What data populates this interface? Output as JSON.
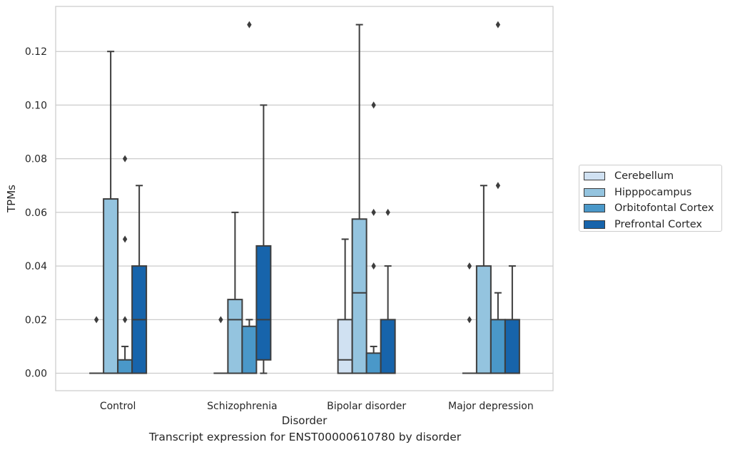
{
  "chart_data": {
    "type": "box",
    "caption": "Transcript expression for ENST00000610780 by disorder",
    "xlabel": "Disorder",
    "ylabel": "TPMs",
    "ylim": [
      -0.0065,
      0.1368
    ],
    "yticks": [
      "0.00",
      "0.02",
      "0.04",
      "0.06",
      "0.08",
      "0.10",
      "0.12"
    ],
    "ytick_values": [
      0,
      0.02,
      0.04,
      0.06,
      0.08,
      0.1,
      0.12
    ],
    "grid": "horizontal",
    "legend_position": "right",
    "categories": [
      "Control",
      "Schizophrenia",
      "Bipolar disorder",
      "Major depression"
    ],
    "series": [
      {
        "name": "Cerebellum",
        "color": "#d0e1f2",
        "boxes": [
          {
            "q1": 0,
            "median": 0,
            "q3": 0,
            "whislo": 0,
            "whishi": 0,
            "fliers": [
              0.02
            ]
          },
          {
            "q1": 0,
            "median": 0,
            "q3": 0,
            "whislo": 0,
            "whishi": 0,
            "fliers": [
              0.02
            ]
          },
          {
            "q1": 0,
            "median": 0.005,
            "q3": 0.02,
            "whislo": 0,
            "whishi": 0.05,
            "fliers": []
          },
          {
            "q1": 0,
            "median": 0,
            "q3": 0,
            "whislo": 0,
            "whishi": 0,
            "fliers": [
              0.02,
              0.04
            ]
          }
        ]
      },
      {
        "name": "Hipppocampus",
        "color": "#94c4df",
        "boxes": [
          {
            "q1": 0,
            "median": 0,
            "q3": 0.065,
            "whislo": 0,
            "whishi": 0.12,
            "fliers": []
          },
          {
            "q1": 0,
            "median": 0.02,
            "q3": 0.0275,
            "whislo": 0,
            "whishi": 0.06,
            "fliers": []
          },
          {
            "q1": 0,
            "median": 0.03,
            "q3": 0.0575,
            "whislo": 0,
            "whishi": 0.13,
            "fliers": []
          },
          {
            "q1": 0,
            "median": 0,
            "q3": 0.04,
            "whislo": 0,
            "whishi": 0.07,
            "fliers": []
          }
        ]
      },
      {
        "name": "Orbitofontal Cortex",
        "color": "#4a98c9",
        "boxes": [
          {
            "q1": 0,
            "median": 0,
            "q3": 0.005,
            "whislo": 0,
            "whishi": 0.01,
            "fliers": [
              0.02,
              0.05,
              0.08
            ]
          },
          {
            "q1": 0,
            "median": 0,
            "q3": 0.0175,
            "whislo": 0,
            "whishi": 0.02,
            "fliers": [
              0.13
            ]
          },
          {
            "q1": 0,
            "median": 0,
            "q3": 0.0075,
            "whislo": 0,
            "whishi": 0.01,
            "fliers": [
              0.04,
              0.06,
              0.1
            ]
          },
          {
            "q1": 0,
            "median": 0,
            "q3": 0.02,
            "whislo": 0,
            "whishi": 0.03,
            "fliers": [
              0.07,
              0.13
            ]
          }
        ]
      },
      {
        "name": "Prefrontal Cortex",
        "color": "#1764ab",
        "boxes": [
          {
            "q1": 0,
            "median": 0.02,
            "q3": 0.04,
            "whislo": 0,
            "whishi": 0.07,
            "fliers": []
          },
          {
            "q1": 0.005,
            "median": 0.02,
            "q3": 0.0475,
            "whislo": 0,
            "whishi": 0.1,
            "fliers": []
          },
          {
            "q1": 0,
            "median": 0,
            "q3": 0.02,
            "whislo": 0,
            "whishi": 0.04,
            "fliers": [
              0.06
            ]
          },
          {
            "q1": 0,
            "median": 0,
            "q3": 0.02,
            "whislo": 0,
            "whishi": 0.04,
            "fliers": []
          }
        ]
      }
    ]
  }
}
